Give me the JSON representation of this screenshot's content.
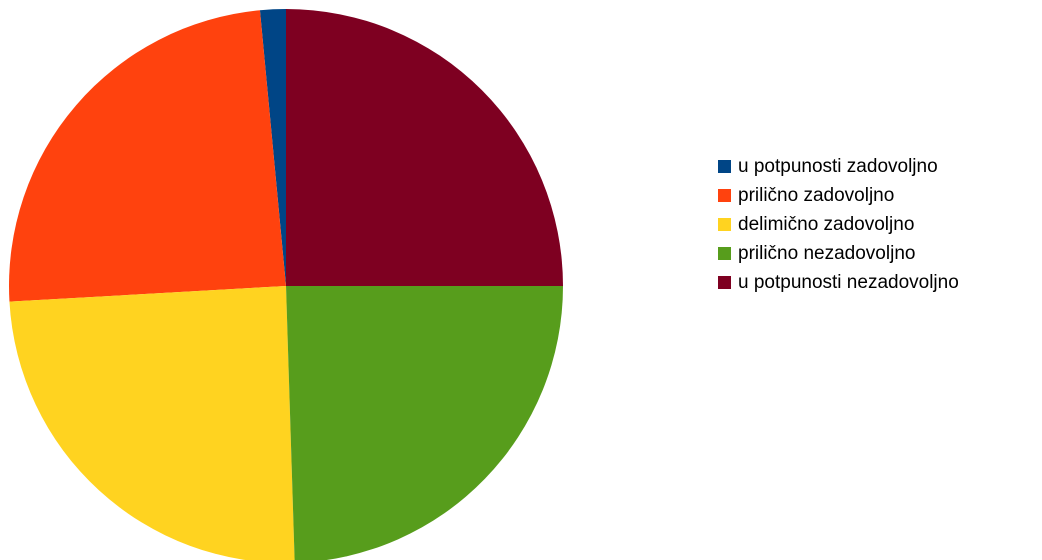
{
  "chart_data": {
    "type": "pie",
    "title": "",
    "categories": [
      "u potpunosti zadovoljno",
      "prilično zadovoljno",
      "delimično zadovoljno",
      "prilično nezadovoljno",
      "u potpunosti nezadovoljno"
    ],
    "values": [
      1.5,
      24.4,
      24.6,
      24.5,
      25.0
    ],
    "colors": [
      "#004586",
      "#ff420e",
      "#ffd320",
      "#579d1c",
      "#7e0021"
    ],
    "legend_position": "right",
    "start": "top, counterclockwise"
  }
}
